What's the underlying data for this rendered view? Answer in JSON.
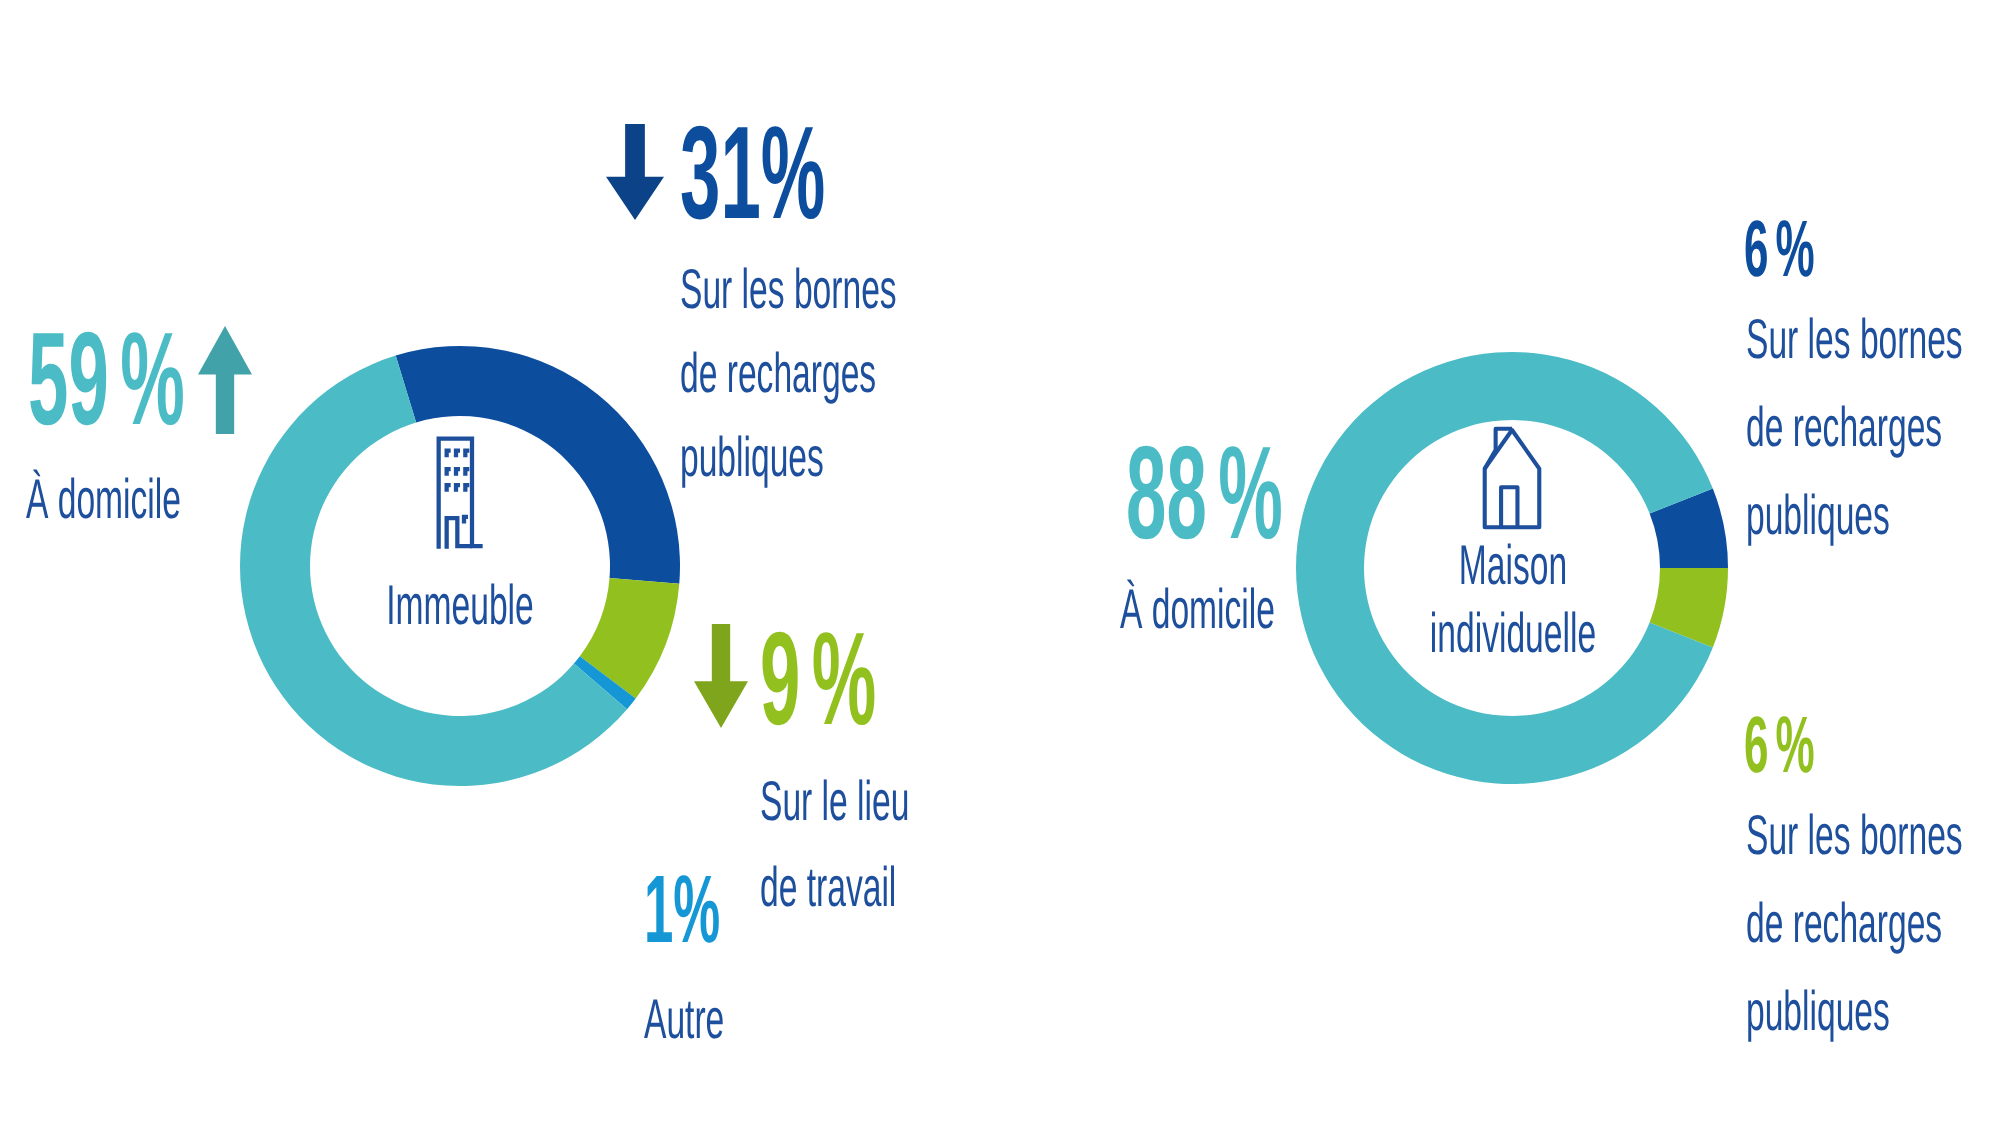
{
  "chart_data": [
    {
      "type": "donut",
      "title": "Immeuble",
      "categories": [
        "Sur les bornes de recharges publiques",
        "Sur le lieu de travail",
        "Autre",
        "À domicile"
      ],
      "values": [
        31,
        9,
        1,
        59
      ],
      "colors": [
        "#0d4d9e",
        "#92c01f",
        "#1597d5",
        "#4bbcc6"
      ],
      "value_labels": [
        "31%",
        "9 %",
        "1%",
        "59 %"
      ]
    },
    {
      "type": "donut",
      "title": "Maison individuelle",
      "categories": [
        "Sur les bornes de recharges publiques",
        "Sur les bornes de recharges publiques",
        "À domicile"
      ],
      "values": [
        6,
        6,
        88
      ],
      "colors": [
        "#0d4d9e",
        "#92c01f",
        "#4bbcc6"
      ],
      "value_labels": [
        "6 %",
        "6 %",
        "88 %"
      ]
    }
  ]
}
